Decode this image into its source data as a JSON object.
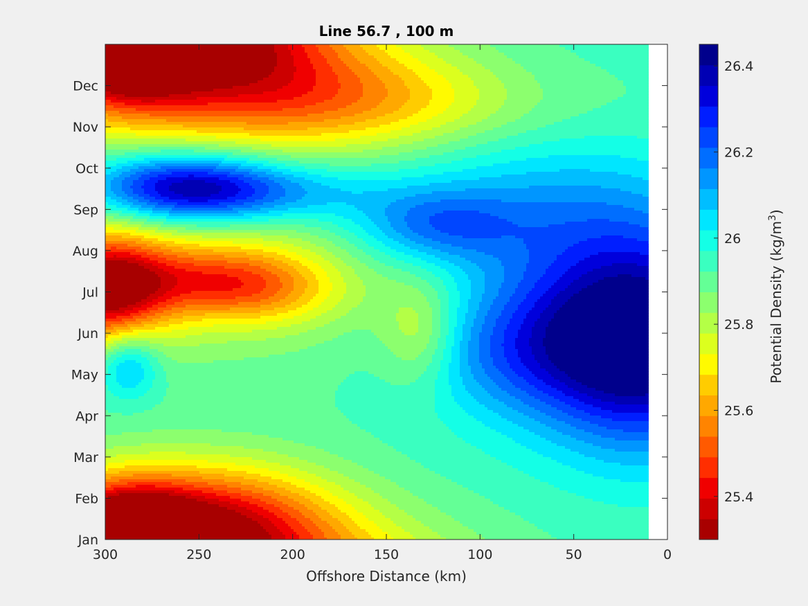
{
  "chart_data": {
    "type": "contour",
    "title": "Line 56.7 , 100 m",
    "xlabel": "Offshore Distance (km)",
    "colorbar_label": "Potential Density (kg/m3)",
    "colorbar_label_base": "Potential Density (kg/m",
    "colorbar_label_exp": "3",
    "colorbar_label_tail": ")",
    "x_reversed": true,
    "xlim": [
      300,
      0
    ],
    "x_ticks": [
      300,
      250,
      200,
      150,
      100,
      50,
      0
    ],
    "x_tick_labels": [
      "300",
      "250",
      "200",
      "150",
      "100",
      "50",
      "0"
    ],
    "y_tick_labels": [
      "Jan",
      "Feb",
      "Mar",
      "Apr",
      "May",
      "Jun",
      "Jul",
      "Aug",
      "Sep",
      "Oct",
      "Nov",
      "Dec"
    ],
    "data_x_extent": [
      10,
      300
    ],
    "clim": [
      25.3,
      26.45
    ],
    "level_step": 0.05,
    "colorbar_ticks": [
      25.4,
      25.6,
      25.8,
      26.0,
      26.2,
      26.4
    ],
    "colorbar_tick_labels": [
      "25.4",
      "25.6",
      "25.8",
      "26",
      "26.2",
      "26.4"
    ],
    "colormap": "jet",
    "colors": [
      "#a80000",
      "#cc0000",
      "#f00000",
      "#ff2e00",
      "#ff5a00",
      "#ff8400",
      "#ffa800",
      "#ffcc00",
      "#fffa00",
      "#dcff1e",
      "#b4ff46",
      "#8cff6e",
      "#64ff96",
      "#3affc0",
      "#14ffe6",
      "#00e6ff",
      "#00beff",
      "#0096ff",
      "#006eff",
      "#0046ff",
      "#001eff",
      "#0000dc",
      "#0000b4",
      "#00008c"
    ],
    "field": {
      "base": 25.95,
      "features": [
        {
          "x": 292,
          "m": 0.0,
          "sx": 25,
          "sm": 0.9,
          "a": -0.55
        },
        {
          "x": 235,
          "m": 0.4,
          "sx": 45,
          "sm": 1.0,
          "a": -0.3
        },
        {
          "x": 270,
          "m": 0.5,
          "sx": 45,
          "sm": 1.0,
          "a": -0.15
        },
        {
          "x": 300,
          "m": 6.0,
          "sx": 22,
          "sm": 1.0,
          "a": -0.5
        },
        {
          "x": 260,
          "m": 6.3,
          "sx": 35,
          "sm": 0.6,
          "a": -0.2
        },
        {
          "x": 218,
          "m": 6.1,
          "sx": 30,
          "sm": 0.6,
          "a": -0.22
        },
        {
          "x": 248,
          "m": 6.5,
          "sx": 70,
          "sm": 1.3,
          "a": -0.18
        },
        {
          "x": 288,
          "m": 4.3,
          "sx": 12,
          "sm": 0.6,
          "a": 0.25
        },
        {
          "x": 132,
          "m": 5.0,
          "sx": 15,
          "sm": 0.9,
          "a": -0.18
        },
        {
          "x": 260,
          "m": 8.55,
          "sx": 35,
          "sm": 0.6,
          "a": 0.45
        },
        {
          "x": 215,
          "m": 8.4,
          "sx": 45,
          "sm": 0.5,
          "a": 0.2
        },
        {
          "x": 125,
          "m": 7.6,
          "sx": 30,
          "sm": 0.6,
          "a": 0.2
        },
        {
          "x": 70,
          "m": 8.0,
          "sx": 60,
          "sm": 1.2,
          "a": 0.18
        },
        {
          "x": 10,
          "m": 4.8,
          "sx": 38,
          "sm": 1.8,
          "a": 0.55
        },
        {
          "x": 60,
          "m": 5.0,
          "sx": 40,
          "sm": 1.5,
          "a": 0.22
        },
        {
          "x": 90,
          "m": 4.5,
          "sx": 40,
          "sm": 1.0,
          "a": 0.12
        },
        {
          "x": 250,
          "m": 11.3,
          "sx": 80,
          "sm": 1.3,
          "a": -0.35
        },
        {
          "x": 160,
          "m": 10.6,
          "sx": 70,
          "sm": 0.8,
          "a": -0.22
        },
        {
          "x": 290,
          "m": 11.9,
          "sx": 15,
          "sm": 0.3,
          "a": -0.2
        },
        {
          "x": 80,
          "m": 10.8,
          "sx": 50,
          "sm": 1.0,
          "a": 0.05
        },
        {
          "x": 130,
          "m": 1.5,
          "sx": 60,
          "sm": 1.0,
          "a": 0.02
        }
      ]
    }
  }
}
